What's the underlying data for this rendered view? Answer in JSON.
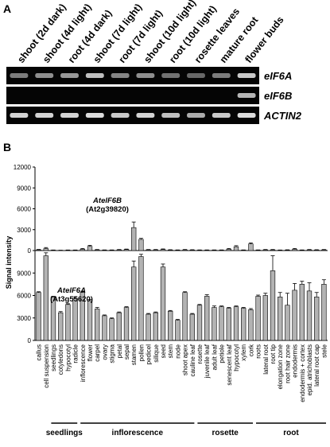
{
  "panel_a": {
    "label": "A",
    "lane_labels": [
      "shoot (2d dark)",
      "shoot (4d light)",
      "root (4d dark)",
      "shoot (7d light)",
      "root (7d light)",
      "shoot (10d light)",
      "root (10d light)",
      "rosette leaves",
      "mature root",
      "flower buds"
    ],
    "rows": [
      {
        "name": "eIF6A",
        "band_intensity": [
          0.45,
          0.55,
          0.6,
          0.8,
          0.5,
          0.55,
          0.4,
          0.35,
          0.45,
          0.85
        ]
      },
      {
        "name": "eIF6B",
        "band_intensity": [
          0,
          0,
          0,
          0,
          0,
          0,
          0,
          0,
          0,
          0.75
        ]
      },
      {
        "name": "ACTIN2",
        "band_intensity": [
          0.9,
          0.9,
          0.9,
          0.95,
          0.85,
          0.9,
          0.8,
          0.7,
          0.85,
          0.95
        ]
      }
    ]
  },
  "chart_data": {
    "type": "bar",
    "panel_label": "B",
    "ylabel": "Signal intensity",
    "ylim": [
      0,
      12000
    ],
    "yticks": [
      0,
      3000,
      6000,
      9000,
      12000
    ],
    "ytick_labels": [
      "0",
      "3000",
      "6000",
      "9000",
      "12000"
    ],
    "categories": [
      "callus",
      "cell suspension",
      "seedlings",
      "cotyledons",
      "hypocotyl",
      "radicle",
      "inflorescence",
      "flower",
      "carpel",
      "ovary",
      "stigma",
      "petal",
      "sepal",
      "stamen",
      "pollen",
      "pedicel",
      "silique",
      "seed",
      "stem",
      "node",
      "shoot apex",
      "cauline leaf",
      "rosette",
      "juvenile leaf",
      "adult leaf",
      "petiole",
      "senescent leaf",
      "hypocotyl",
      "xylem",
      "cork",
      "roots",
      "lateral root",
      "root tip",
      "elongation zone",
      "root hair zone",
      "endodermis",
      "endodermis + cortex",
      "epid. atrichoblasts",
      "lateral root cap",
      "stele"
    ],
    "series": [
      {
        "name": "AtelF6B",
        "id_text": "(At2g39820)",
        "values": [
          100,
          280,
          50,
          30,
          50,
          50,
          200,
          600,
          100,
          60,
          60,
          100,
          150,
          3300,
          1600,
          100,
          100,
          150,
          80,
          60,
          100,
          80,
          60,
          60,
          60,
          60,
          200,
          550,
          60,
          950,
          60,
          100,
          100,
          50,
          70,
          200,
          60,
          100,
          80,
          100
        ],
        "errors": [
          60,
          150,
          30,
          20,
          30,
          30,
          100,
          150,
          50,
          30,
          30,
          50,
          60,
          800,
          150,
          50,
          50,
          80,
          40,
          30,
          50,
          40,
          30,
          30,
          30,
          30,
          100,
          150,
          30,
          150,
          30,
          50,
          50,
          30,
          40,
          100,
          30,
          50,
          40,
          50
        ]
      },
      {
        "name": "AtelF6A",
        "id_text": "(At3g55620)",
        "values": [
          6400,
          11300,
          5800,
          3700,
          4800,
          5600,
          6400,
          5300,
          4200,
          3300,
          2900,
          3700,
          4400,
          9800,
          11200,
          3500,
          3700,
          9800,
          3900,
          2700,
          6400,
          3500,
          4700,
          5900,
          4400,
          4500,
          4300,
          4500,
          4300,
          4100,
          5900,
          6000,
          9300,
          5800,
          4700,
          6700,
          7500,
          6600,
          5800,
          7500
        ],
        "errors": [
          100,
          400,
          100,
          150,
          100,
          200,
          100,
          150,
          200,
          100,
          100,
          100,
          100,
          800,
          300,
          100,
          100,
          400,
          100,
          100,
          100,
          100,
          100,
          200,
          200,
          100,
          100,
          100,
          100,
          150,
          150,
          300,
          2000,
          600,
          1600,
          900,
          400,
          1100,
          600,
          600
        ]
      }
    ],
    "groups": [
      {
        "name": "seedlings",
        "from": 2,
        "to": 5
      },
      {
        "name": "inflorescence",
        "from": 6,
        "to": 21
      },
      {
        "name": "rosette",
        "from": 22,
        "to": 29
      },
      {
        "name": "root",
        "from": 30,
        "to": 39
      }
    ],
    "grid": false,
    "legend": "none"
  }
}
